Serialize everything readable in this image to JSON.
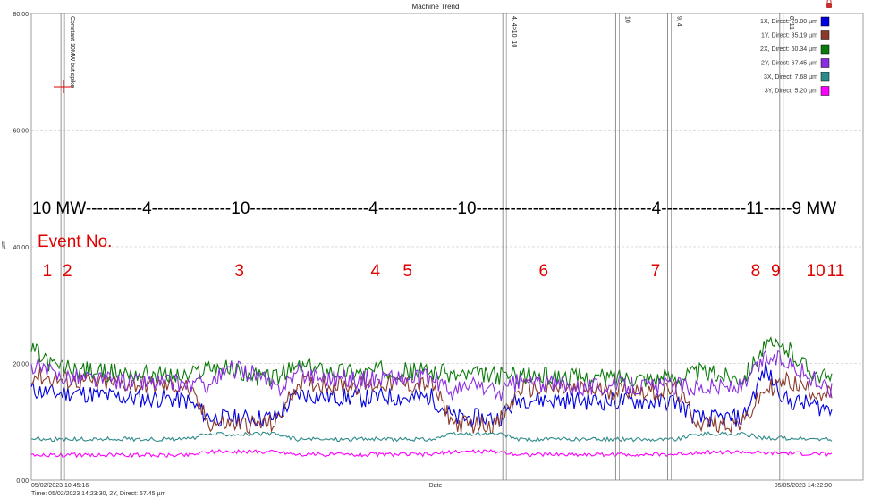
{
  "window": {
    "title": "Machine Trend"
  },
  "status": {
    "cursor_readout": "Time: 05/02/2023 14:23:30, 2Y, Direct: 67.45 µm"
  },
  "chart_data": {
    "type": "line",
    "title": "Machine Trend",
    "xlabel": "Date",
    "ylabel": "µm",
    "ylim": [
      0,
      80
    ],
    "yticks": [
      "0.00",
      "20.00",
      "40.00",
      "60.00",
      "80.00"
    ],
    "x_start_label": "05/02/2023 10:45:16",
    "x_end_label": "05/05/2023 14:22:00",
    "grid": true,
    "legend_position": "top-right",
    "series": [
      {
        "name": "1X, Direct: 29.80 µm",
        "color": "#0000e0",
        "values": [
          15.5,
          14.8,
          15.0,
          14.6,
          14.2,
          14.0,
          14.0,
          13.6,
          10.8,
          10.6,
          10.6,
          10.7,
          14.8,
          14.4,
          14.2,
          14.0,
          14.4,
          14.0,
          14.2,
          10.6,
          10.7,
          10.6,
          14.0,
          13.8,
          13.7,
          13.6,
          13.5,
          13.6,
          13.4,
          13.5,
          10.5,
          10.6,
          10.6,
          19.0,
          13.5,
          13.0,
          12.0
        ]
      },
      {
        "name": "1Y, Direct: 35.19 µm",
        "color": "#8b3a2a",
        "values": [
          18.0,
          17.3,
          17.0,
          16.6,
          16.5,
          16.4,
          16.2,
          16.0,
          9.8,
          9.6,
          9.6,
          9.7,
          16.8,
          16.5,
          16.3,
          16.2,
          16.6,
          16.3,
          16.4,
          9.6,
          9.6,
          9.6,
          15.8,
          15.6,
          15.6,
          15.4,
          15.4,
          15.5,
          15.2,
          15.3,
          9.8,
          9.8,
          9.7,
          15.5,
          17.0,
          15.5,
          14.5
        ]
      },
      {
        "name": "2X, Direct: 60.34 µm",
        "color": "#0a7a0a",
        "values": [
          22.5,
          19.5,
          19.0,
          18.5,
          18.4,
          18.2,
          18.0,
          17.6,
          19.5,
          19.0,
          17.8,
          17.6,
          19.5,
          19.0,
          18.8,
          18.5,
          19.0,
          18.6,
          18.8,
          18.0,
          18.0,
          17.9,
          18.0,
          17.8,
          17.7,
          17.5,
          17.6,
          17.7,
          17.5,
          17.6,
          18.5,
          18.0,
          17.6,
          23.0,
          22.5,
          19.0,
          17.0
        ]
      },
      {
        "name": "2Y, Direct: 67.45 µm",
        "color": "#8a2be2",
        "values": [
          20.0,
          18.0,
          17.8,
          17.2,
          17.0,
          16.8,
          16.8,
          16.4,
          16.5,
          19.0,
          18.5,
          15.5,
          18.5,
          17.8,
          17.5,
          17.2,
          17.8,
          17.2,
          17.5,
          15.0,
          16.5,
          14.8,
          17.0,
          16.5,
          16.3,
          16.0,
          16.2,
          16.3,
          16.0,
          16.2,
          16.0,
          16.0,
          15.8,
          21.0,
          20.5,
          17.5,
          15.5
        ]
      },
      {
        "name": "3X, Direct: 7.68 µm",
        "color": "#2e8b8b",
        "values": [
          7.2,
          7.0,
          7.0,
          7.0,
          7.1,
          7.0,
          7.0,
          7.0,
          7.9,
          7.9,
          7.9,
          7.9,
          7.0,
          7.0,
          7.0,
          7.1,
          7.0,
          7.0,
          7.0,
          7.9,
          7.9,
          7.9,
          7.0,
          7.0,
          7.0,
          7.0,
          7.0,
          7.0,
          7.0,
          7.0,
          7.9,
          7.9,
          7.9,
          7.2,
          7.2,
          7.0,
          7.0
        ]
      },
      {
        "name": "3Y, Direct: 5.20 µm",
        "color": "#ff00ff",
        "values": [
          4.2,
          4.3,
          4.3,
          4.3,
          4.3,
          4.3,
          4.3,
          4.3,
          4.9,
          4.9,
          4.9,
          4.9,
          4.4,
          4.4,
          4.4,
          4.4,
          4.4,
          4.4,
          4.4,
          4.9,
          4.9,
          4.9,
          4.4,
          4.4,
          4.4,
          4.4,
          4.4,
          4.4,
          4.4,
          4.4,
          4.8,
          4.8,
          4.8,
          4.6,
          4.6,
          4.5,
          4.5
        ]
      }
    ],
    "event_markers": [
      {
        "label": "Constant 10MW but spike",
        "t": 0.037
      },
      {
        "label": "4, 4>10, 10",
        "t": 0.589
      },
      {
        "label": "10",
        "t": 0.73
      },
      {
        "label": "9, 4",
        "t": 0.795
      },
      {
        "label": "8, 11",
        "t": 0.935
      }
    ],
    "power_annotation": "10 MW----------4--------------10---------------------4--------------10-------------------------------4---------------11-----9 MW",
    "event_no_label": "Event No.",
    "event_numbers": [
      {
        "label": "1",
        "t": 0.02
      },
      {
        "label": "2",
        "t": 0.045
      },
      {
        "label": "3",
        "t": 0.26
      },
      {
        "label": "4",
        "t": 0.43
      },
      {
        "label": "5",
        "t": 0.47
      },
      {
        "label": "6",
        "t": 0.64
      },
      {
        "label": "7",
        "t": 0.78
      },
      {
        "label": "8",
        "t": 0.905
      },
      {
        "label": "9",
        "t": 0.93
      },
      {
        "label": "10",
        "t": 0.98
      },
      {
        "label": "11",
        "t": 1.005
      }
    ]
  }
}
